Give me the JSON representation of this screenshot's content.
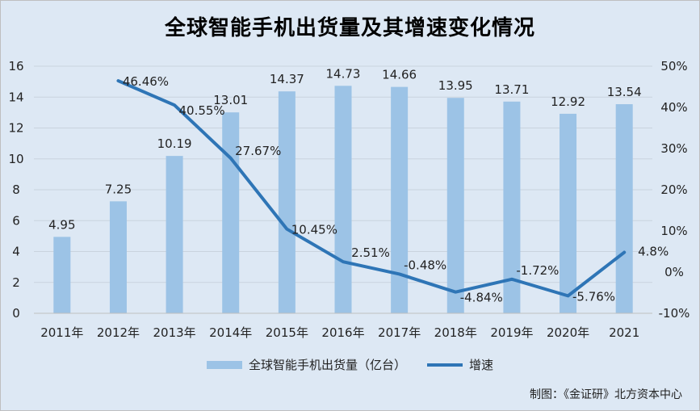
{
  "chart_data": {
    "type": "bar",
    "title": "全球智能手机出货量及其增速变化情况",
    "categories": [
      "2011年",
      "2012年",
      "2013年",
      "2014年",
      "2015年",
      "2016年",
      "2017年",
      "2018年",
      "2019年",
      "2020年",
      "2021"
    ],
    "series": [
      {
        "name": "全球智能手机出货量（亿台）",
        "type": "bar",
        "axis": "left",
        "color": "#9cc3e6",
        "values": [
          4.95,
          7.25,
          10.19,
          13.01,
          14.37,
          14.73,
          14.66,
          13.95,
          13.71,
          12.92,
          13.54
        ],
        "labels": [
          "4.95",
          "7.25",
          "10.19",
          "13.01",
          "14.37",
          "14.73",
          "14.66",
          "13.95",
          "13.71",
          "12.92",
          "13.54"
        ]
      },
      {
        "name": "增速",
        "type": "line",
        "axis": "right",
        "color": "#2e75b6",
        "values": [
          null,
          46.46,
          40.55,
          27.67,
          10.45,
          2.51,
          -0.48,
          -4.84,
          -1.72,
          -5.76,
          4.8
        ],
        "labels": [
          "",
          "46.46%",
          "40.55%",
          "27.67%",
          "10.45%",
          "2.51%",
          "-0.48%",
          "-4.84%",
          "-1.72%",
          "-5.76%",
          "4.8%"
        ]
      }
    ],
    "y_left": {
      "min": 0,
      "max": 16,
      "ticks": [
        "0",
        "2",
        "4",
        "6",
        "8",
        "10",
        "12",
        "14",
        "16"
      ]
    },
    "y_right": {
      "min": -10,
      "max": 50,
      "ticks": [
        "-10%",
        "0%",
        "10%",
        "20%",
        "30%",
        "40%",
        "50%"
      ]
    },
    "grid": true,
    "legend": "bottom"
  },
  "source_text": "制图：《金证研》北方资本中心"
}
